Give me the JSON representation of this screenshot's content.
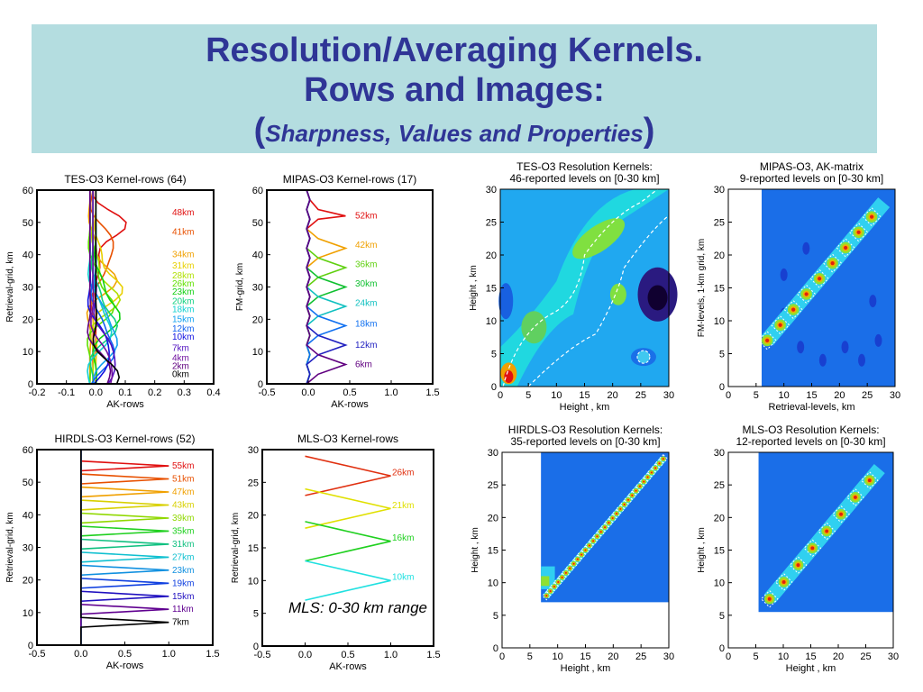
{
  "title": {
    "line1": "Resolution/Averaging Kernels.",
    "line2": "Rows and Images:",
    "paren_open": "(",
    "line3": "Sharpness, Values  and Properties",
    "paren_close": ")"
  },
  "note": "MLS: 0-30 km range",
  "chart_data": [
    {
      "type": "line",
      "title": "TES-O3 Kernel-rows (64)",
      "xlabel": "AK-rows",
      "ylabel": "Retrieval-grid, km",
      "xlim": [
        -0.2,
        0.4
      ],
      "ylim": [
        0,
        60
      ],
      "xticks": [
        "-0.2",
        "-0.1",
        "0.0",
        "0.1",
        "0.2",
        "0.3",
        "0.4"
      ],
      "yticks": [
        "0",
        "10",
        "20",
        "30",
        "40",
        "50",
        "60"
      ],
      "labels": [
        "48km",
        "41km",
        "34km",
        "31km",
        "28km",
        "26km",
        "23km",
        "20km",
        "18km",
        "15km",
        "12km",
        "10km",
        "7km",
        "4km",
        "2km",
        "0km"
      ],
      "colors": [
        "#e01010",
        "#e85000",
        "#f0a000",
        "#e8d000",
        "#b0e000",
        "#60e000",
        "#10d010",
        "#10d080",
        "#10d0d0",
        "#10a0f0",
        "#1060f0",
        "#1010e0",
        "#5010c0",
        "#7010a0",
        "#600080",
        "#000000"
      ]
    },
    {
      "type": "line",
      "title": "MIPAS-O3 Kernel-rows (17)",
      "xlabel": "AK-rows",
      "ylabel": "FM-grid, km",
      "xlim": [
        -0.5,
        1.5
      ],
      "ylim": [
        0,
        60
      ],
      "xticks": [
        "-0.5",
        "0.0",
        "0.5",
        "1.0",
        "1.5"
      ],
      "yticks": [
        "0",
        "10",
        "20",
        "30",
        "40",
        "50",
        "60"
      ],
      "labels": [
        "52km",
        "42km",
        "36km",
        "30km",
        "24km",
        "18km",
        "12km",
        "6km"
      ],
      "colors": [
        "#e01010",
        "#f0a000",
        "#60d010",
        "#10c030",
        "#10c0c0",
        "#1070f0",
        "#2020c0",
        "#600080"
      ]
    },
    {
      "type": "heatmap",
      "title": [
        "TES-O3 Resolution Kernels:",
        "46-reported levels on [0-30 km]"
      ],
      "xlabel": "Height , km",
      "ylabel": "Height , km",
      "xlim": [
        0,
        30
      ],
      "ylim": [
        0,
        30
      ],
      "xticks": [
        "0",
        "5",
        "10",
        "15",
        "20",
        "25",
        "30"
      ],
      "yticks": [
        "0",
        "5",
        "10",
        "15",
        "20",
        "25",
        "30"
      ]
    },
    {
      "type": "heatmap",
      "title": [
        "MIPAS-O3, AK-matrix",
        "9-reported levels on [0-30 km]"
      ],
      "xlabel": "Retrieval-levels, km",
      "ylabel": "FM-levels, 1-km grid, km",
      "xlim": [
        0,
        30
      ],
      "ylim": [
        0,
        30
      ],
      "xticks": [
        "0",
        "5",
        "10",
        "15",
        "20",
        "25",
        "30"
      ],
      "yticks": [
        "0",
        "5",
        "10",
        "15",
        "20",
        "25",
        "30"
      ]
    },
    {
      "type": "line",
      "title": "HIRDLS-O3 Kernel-rows (52)",
      "xlabel": "AK-rows",
      "ylabel": "Retrieval-grid, km",
      "xlim": [
        -0.5,
        1.5
      ],
      "ylim": [
        0,
        60
      ],
      "xticks": [
        "-0.5",
        "0.0",
        "0.5",
        "1.0",
        "1.5"
      ],
      "yticks": [
        "0",
        "10",
        "20",
        "30",
        "40",
        "50",
        "60"
      ],
      "labels": [
        "55km",
        "51km",
        "47km",
        "43km",
        "39km",
        "35km",
        "31km",
        "27km",
        "23km",
        "19km",
        "15km",
        "11km",
        "7km"
      ],
      "colors": [
        "#e01010",
        "#e85000",
        "#f0a000",
        "#d8d000",
        "#90d800",
        "#20d020",
        "#10c080",
        "#10c0d0",
        "#1090e0",
        "#1040e0",
        "#2010c0",
        "#600090",
        "#000000"
      ]
    },
    {
      "type": "line",
      "title": "MLS-O3 Kernel-rows",
      "xlabel": "AK-rows",
      "ylabel": "Retrieval-grid, km",
      "xlim": [
        -0.5,
        1.5
      ],
      "ylim": [
        0,
        30
      ],
      "xticks": [
        "-0.5",
        "0.0",
        "0.5",
        "1.0",
        "1.5"
      ],
      "yticks": [
        "0",
        "5",
        "10",
        "15",
        "20",
        "25",
        "30"
      ],
      "labels": [
        "26km",
        "21km",
        "16km",
        "10km"
      ],
      "colors": [
        "#e03010",
        "#e0e000",
        "#20d020",
        "#20e0e0"
      ]
    },
    {
      "type": "heatmap",
      "title": [
        "HIRDLS-O3 Resolution Kernels:",
        "35-reported levels on [0-30 km]"
      ],
      "xlabel": "Height , km",
      "ylabel": "Height , km",
      "xlim": [
        0,
        30
      ],
      "ylim": [
        0,
        30
      ],
      "xticks": [
        "0",
        "5",
        "10",
        "15",
        "20",
        "25",
        "30"
      ],
      "yticks": [
        "0",
        "5",
        "10",
        "15",
        "20",
        "25",
        "30"
      ]
    },
    {
      "type": "heatmap",
      "title": [
        "MLS-O3 Resolution Kernels:",
        "12-reported levels on [0-30 km]"
      ],
      "xlabel": "Height , km",
      "ylabel": "Height , km",
      "xlim": [
        0,
        30
      ],
      "ylim": [
        0,
        30
      ],
      "xticks": [
        "0",
        "5",
        "10",
        "15",
        "20",
        "25",
        "30"
      ],
      "yticks": [
        "0",
        "5",
        "10",
        "15",
        "20",
        "25",
        "30"
      ]
    }
  ]
}
